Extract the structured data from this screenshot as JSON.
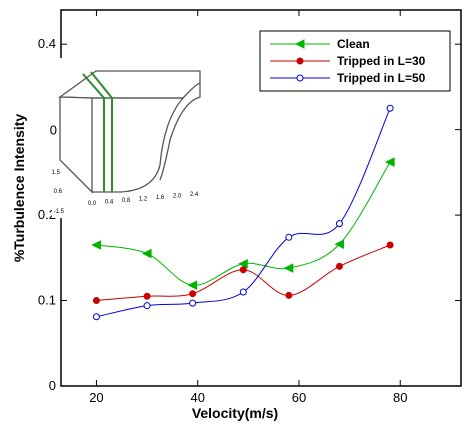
{
  "chart_data": {
    "type": "line",
    "xlabel": "Velocity(m/s)",
    "ylabel": "%Turbulence Intensity",
    "xlim": [
      13,
      92
    ],
    "ylim": [
      0,
      0.44
    ],
    "xticks": [
      20,
      40,
      60,
      80
    ],
    "yticks": [
      0,
      0.1,
      0.2,
      0.4
    ],
    "xtick_labels": [
      "20",
      "40",
      "60",
      "80"
    ],
    "ytick_labels": [
      "0",
      "0.1",
      "0.2",
      "0.4"
    ],
    "hidden_tick_label": "0",
    "legend_position": "top-right",
    "smooth": true,
    "series": [
      {
        "name": "Clean",
        "color": "#00b400",
        "marker": "triangle-left",
        "x": [
          20,
          30,
          39,
          49,
          58,
          68,
          78
        ],
        "y": [
          0.165,
          0.155,
          0.118,
          0.143,
          0.138,
          0.166,
          0.262
        ]
      },
      {
        "name": "Tripped in L=30",
        "color": "#c80000",
        "marker": "filled-circle",
        "x": [
          20,
          30,
          39,
          49,
          58,
          68,
          78
        ],
        "y": [
          0.1,
          0.105,
          0.108,
          0.136,
          0.106,
          0.14,
          0.165
        ]
      },
      {
        "name": "Tripped in L=50",
        "color": "#0000dc",
        "marker": "open-circle",
        "x": [
          20,
          30,
          39,
          49,
          58,
          68,
          78
        ],
        "y": [
          0.081,
          0.094,
          0.097,
          0.11,
          0.174,
          0.19,
          0.325
        ]
      }
    ]
  },
  "inset": {
    "description_icon": "wind-tunnel-contraction-icon",
    "axis_ticks_left": [
      "1.5",
      "0.6",
      "-1.5"
    ],
    "axis_ticks_bottom": [
      "0.0",
      "0.4",
      "0.8",
      "1.2",
      "1.6",
      "2.0",
      "2.4"
    ]
  }
}
